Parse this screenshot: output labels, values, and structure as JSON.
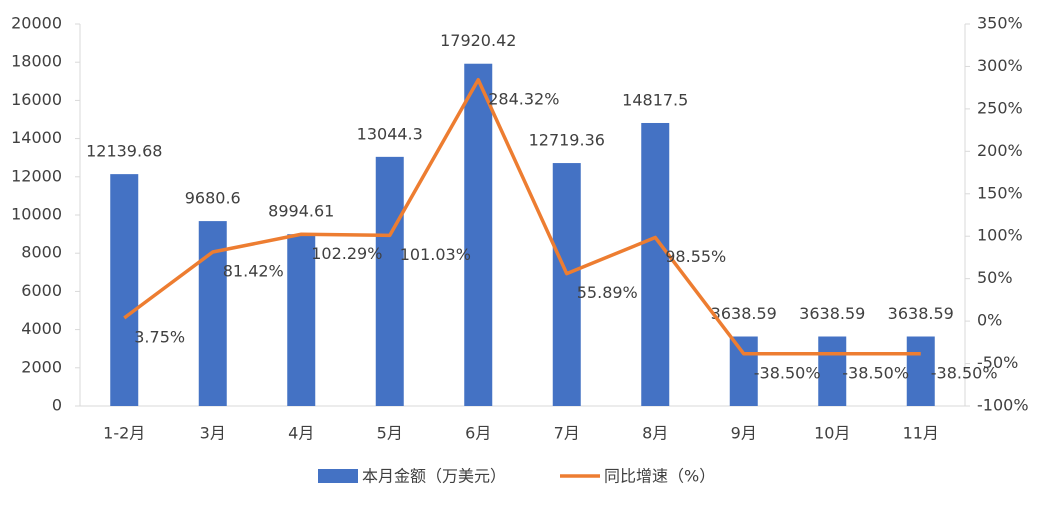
{
  "chart_data": {
    "type": "bar_line",
    "categories": [
      "1-2月",
      "3月",
      "4月",
      "5月",
      "6月",
      "7月",
      "8月",
      "9月",
      "10月",
      "11月"
    ],
    "series": [
      {
        "name": "本月金额（万美元）",
        "type": "bar",
        "color": "#4472c4",
        "values": [
          12139.68,
          9680.6,
          8994.61,
          13044.3,
          17920.42,
          12719.36,
          14817.5,
          3638.59,
          3638.59,
          3638.59
        ]
      },
      {
        "name": "同比增速（%）",
        "type": "line",
        "axis": "y2",
        "color": "#ed7d31",
        "values": [
          3.75,
          81.42,
          102.29,
          101.03,
          284.32,
          55.89,
          98.55,
          -38.5,
          -38.5,
          -38.5
        ],
        "value_labels": [
          "3.75%",
          "81.42%",
          "102.29%",
          "101.03%",
          "284.32%",
          "55.89%",
          "98.55%",
          "-38.50%",
          "-38.50%",
          "-38.50%"
        ]
      }
    ],
    "ylim": [
      0,
      20000
    ],
    "yticks": [
      0,
      2000,
      4000,
      6000,
      8000,
      10000,
      12000,
      14000,
      16000,
      18000,
      20000
    ],
    "y2lim": [
      -100,
      350
    ],
    "y2ticks": [
      {
        "value": -100,
        "label": "-100%"
      },
      {
        "value": -50,
        "label": "-50%"
      },
      {
        "value": 0,
        "label": "0%"
      },
      {
        "value": 50,
        "label": "50%"
      },
      {
        "value": 100,
        "label": "100%"
      },
      {
        "value": 150,
        "label": "150%"
      },
      {
        "value": 200,
        "label": "200%"
      },
      {
        "value": 250,
        "label": "250%"
      },
      {
        "value": 300,
        "label": "300%"
      },
      {
        "value": 350,
        "label": "350%"
      }
    ],
    "legend": "bottom"
  }
}
